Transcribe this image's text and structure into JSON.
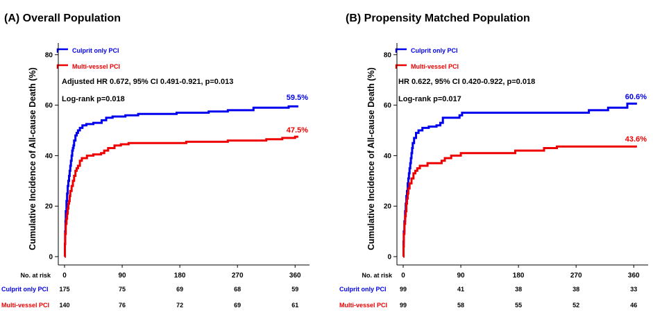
{
  "colors": {
    "culprit": "#0000ee",
    "multivessel": "#ee0000",
    "axis": "#000000"
  },
  "risk_table": {
    "header_label": "No.  at risk"
  },
  "panels": [
    {
      "title": "(A) Overall Population",
      "stat_line": "Adjusted HR 0.672, 95% CI 0.491-0.921, p=0.013",
      "logrank": "Log-rank p=0.018",
      "risk": {
        "culprit": [
          "175",
          "75",
          "69",
          "68",
          "59"
        ],
        "multivessel": [
          "140",
          "76",
          "72",
          "69",
          "61"
        ]
      }
    },
    {
      "title": "(B) Propensity Matched Population",
      "stat_line": "HR 0.622, 95% CI 0.420-0.922, p=0.018",
      "logrank": "Log-rank p=0.017",
      "risk": {
        "culprit": [
          "99",
          "41",
          "38",
          "38",
          "33"
        ],
        "multivessel": [
          "99",
          "58",
          "55",
          "52",
          "46"
        ]
      }
    }
  ],
  "chart_data": [
    {
      "type": "line",
      "title": "(A) Overall Population",
      "xlabel": "",
      "ylabel": "Cumulative Incidence of All-cause Death (%)",
      "xlim": [
        0,
        365
      ],
      "ylim": [
        0,
        85
      ],
      "x_ticks": [
        0,
        90,
        180,
        270,
        360
      ],
      "y_ticks": [
        0,
        20,
        40,
        60,
        80
      ],
      "grid": false,
      "legend": "top-left",
      "series": [
        {
          "name": "Culprit only PCI",
          "color": "#0000ee",
          "end_label": "59.5%",
          "points": [
            [
              0,
              0
            ],
            [
              0.5,
              5
            ],
            [
              1,
              10
            ],
            [
              1.5,
              14
            ],
            [
              2,
              18
            ],
            [
              3,
              22
            ],
            [
              4,
              25
            ],
            [
              5,
              28
            ],
            [
              6,
              30
            ],
            [
              7,
              32
            ],
            [
              8,
              34
            ],
            [
              9,
              36
            ],
            [
              10,
              38
            ],
            [
              11,
              40
            ],
            [
              12,
              42
            ],
            [
              13,
              43
            ],
            [
              14,
              44
            ],
            [
              15,
              46
            ],
            [
              17,
              48
            ],
            [
              19,
              49
            ],
            [
              21,
              50
            ],
            [
              24,
              51
            ],
            [
              28,
              52
            ],
            [
              34,
              52.5
            ],
            [
              45,
              53
            ],
            [
              58,
              54
            ],
            [
              65,
              55
            ],
            [
              75,
              55.5
            ],
            [
              95,
              56
            ],
            [
              115,
              56.5
            ],
            [
              175,
              57
            ],
            [
              225,
              57.5
            ],
            [
              255,
              58
            ],
            [
              295,
              59
            ],
            [
              350,
              59.5
            ],
            [
              365,
              59.5
            ]
          ]
        },
        {
          "name": "Multi-vessel PCI",
          "color": "#ee0000",
          "end_label": "47.5%",
          "points": [
            [
              0,
              0
            ],
            [
              0.5,
              5
            ],
            [
              1,
              9
            ],
            [
              2,
              13
            ],
            [
              3,
              15
            ],
            [
              4,
              17
            ],
            [
              5,
              19
            ],
            [
              6,
              21
            ],
            [
              7,
              22
            ],
            [
              8,
              24
            ],
            [
              9,
              26
            ],
            [
              11,
              28
            ],
            [
              13,
              30
            ],
            [
              15,
              32
            ],
            [
              17,
              34
            ],
            [
              19,
              35
            ],
            [
              21,
              36
            ],
            [
              24,
              38
            ],
            [
              27,
              39
            ],
            [
              35,
              40
            ],
            [
              45,
              40.5
            ],
            [
              57,
              41
            ],
            [
              62,
              42
            ],
            [
              68,
              43
            ],
            [
              78,
              44
            ],
            [
              88,
              44.5
            ],
            [
              100,
              45
            ],
            [
              145,
              45
            ],
            [
              190,
              45.5
            ],
            [
              255,
              46
            ],
            [
              315,
              46.5
            ],
            [
              340,
              47
            ],
            [
              360,
              47.5
            ],
            [
              365,
              47.5
            ]
          ]
        }
      ]
    },
    {
      "type": "line",
      "title": "(B) Propensity Matched Population",
      "xlabel": "",
      "ylabel": "Cumulative Incidence of All-cause Death (%)",
      "xlim": [
        0,
        365
      ],
      "ylim": [
        0,
        85
      ],
      "x_ticks": [
        0,
        90,
        180,
        270,
        360
      ],
      "y_ticks": [
        0,
        20,
        40,
        60,
        80
      ],
      "grid": false,
      "legend": "top-left",
      "series": [
        {
          "name": "Culprit only PCI",
          "color": "#0000ee",
          "end_label": "60.6%",
          "points": [
            [
              0,
              0
            ],
            [
              0.5,
              6
            ],
            [
              1,
              10
            ],
            [
              2,
              14
            ],
            [
              3,
              18
            ],
            [
              4,
              21
            ],
            [
              5,
              24
            ],
            [
              6,
              26
            ],
            [
              7,
              29
            ],
            [
              8,
              31
            ],
            [
              9,
              33
            ],
            [
              10,
              35
            ],
            [
              11,
              37
            ],
            [
              12,
              39
            ],
            [
              13,
              41
            ],
            [
              14,
              43
            ],
            [
              15,
              45
            ],
            [
              17,
              47
            ],
            [
              20,
              49
            ],
            [
              24,
              50
            ],
            [
              30,
              51
            ],
            [
              40,
              51.5
            ],
            [
              52,
              52
            ],
            [
              58,
              53
            ],
            [
              62,
              55
            ],
            [
              88,
              56
            ],
            [
              92,
              57
            ],
            [
              215,
              57
            ],
            [
              290,
              58
            ],
            [
              320,
              59
            ],
            [
              350,
              60.6
            ],
            [
              365,
              60.6
            ]
          ]
        },
        {
          "name": "Multi-vessel PCI",
          "color": "#ee0000",
          "end_label": "43.6%",
          "points": [
            [
              0,
              0
            ],
            [
              0.5,
              4
            ],
            [
              1,
              9
            ],
            [
              2,
              13
            ],
            [
              3,
              16
            ],
            [
              4,
              18
            ],
            [
              5,
              21
            ],
            [
              6,
              23
            ],
            [
              7,
              25
            ],
            [
              8,
              27
            ],
            [
              10,
              29
            ],
            [
              13,
              31
            ],
            [
              16,
              33
            ],
            [
              19,
              34
            ],
            [
              22,
              35
            ],
            [
              26,
              36
            ],
            [
              38,
              37
            ],
            [
              60,
              38
            ],
            [
              65,
              39
            ],
            [
              75,
              40
            ],
            [
              90,
              41
            ],
            [
              170,
              41
            ],
            [
              175,
              42
            ],
            [
              220,
              43
            ],
            [
              240,
              43.6
            ],
            [
              365,
              43.6
            ]
          ]
        }
      ]
    }
  ]
}
